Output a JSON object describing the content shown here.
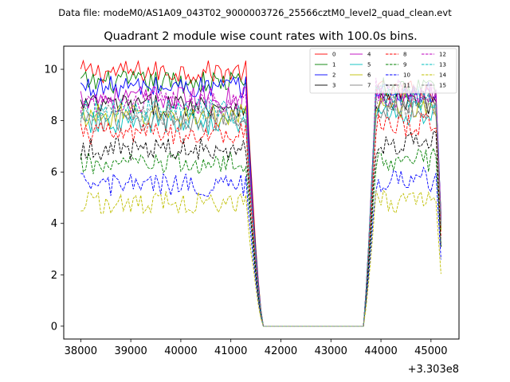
{
  "suptitle": "Data file: modeM0/AS1A09_043T02_9000003726_25566cztM0_level2_quad_clean.evt",
  "chart_data": {
    "type": "line",
    "title": "Quadrant 2 module wise count rates with 100.0s bins.",
    "xlabel": "",
    "ylabel": "",
    "x_offset_label": "+3.303e8",
    "xlim": [
      37660,
      45560
    ],
    "ylim": [
      -0.5,
      10.9
    ],
    "xticks": [
      38000,
      39000,
      40000,
      41000,
      42000,
      43000,
      44000,
      45000
    ],
    "yticks": [
      0,
      2,
      4,
      6,
      8,
      10
    ],
    "grid": false,
    "legend_position": "top-right",
    "series": [
      {
        "name": "0",
        "color": "#ff0000",
        "dash": "solid",
        "base1": 9.9,
        "base2": 9.1
      },
      {
        "name": "1",
        "color": "#008000",
        "dash": "solid",
        "base1": 9.5,
        "base2": 9.3
      },
      {
        "name": "2",
        "color": "#0000ff",
        "dash": "solid",
        "base1": 9.3,
        "base2": 9.1
      },
      {
        "name": "3",
        "color": "#000000",
        "dash": "solid",
        "base1": 8.6,
        "base2": 8.7
      },
      {
        "name": "4",
        "color": "#bf00bf",
        "dash": "solid",
        "base1": 8.9,
        "base2": 9.0
      },
      {
        "name": "5",
        "color": "#00bfbf",
        "dash": "solid",
        "base1": 7.9,
        "base2": 8.3
      },
      {
        "name": "6",
        "color": "#bfbf00",
        "dash": "solid",
        "base1": 8.2,
        "base2": 8.6
      },
      {
        "name": "7",
        "color": "#808080",
        "dash": "solid",
        "base1": 8.0,
        "base2": 8.5
      },
      {
        "name": "8",
        "color": "#ff0000",
        "dash": "dashed",
        "base1": 7.5,
        "base2": 7.8
      },
      {
        "name": "9",
        "color": "#008000",
        "dash": "dashed",
        "base1": 6.3,
        "base2": 6.5
      },
      {
        "name": "10",
        "color": "#0000ff",
        "dash": "dashed",
        "base1": 5.5,
        "base2": 5.7
      },
      {
        "name": "11",
        "color": "#000000",
        "dash": "dashed",
        "base1": 6.9,
        "base2": 7.1
      },
      {
        "name": "12",
        "color": "#bf00bf",
        "dash": "dashed",
        "base1": 8.7,
        "base2": 9.2
      },
      {
        "name": "13",
        "color": "#00bfbf",
        "dash": "dashed",
        "base1": 8.4,
        "base2": 8.9
      },
      {
        "name": "14",
        "color": "#bfbf00",
        "dash": "dashed",
        "base1": 4.8,
        "base2": 4.9
      },
      {
        "name": "15",
        "color": "#808080",
        "dash": "dashed",
        "base1": 8.2,
        "base2": 8.6
      }
    ]
  }
}
